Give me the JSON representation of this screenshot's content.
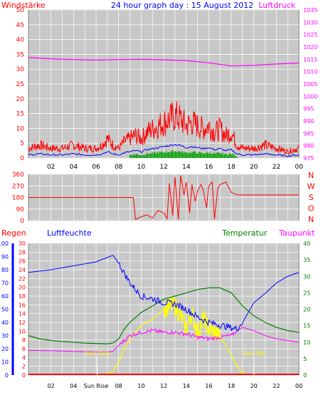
{
  "colors": {
    "background": "#ffffff",
    "plot_area": "#c8c8c8",
    "gridline": "#ffffff",
    "wind": "#ff0000",
    "wind_gust_green": "#00a000",
    "wind_avg_blue": "#0000ff",
    "pressure": "#ff00ff",
    "direction": "#ff0000",
    "rain": "#ff0000",
    "humidity": "#0000ff",
    "temperature": "#008000",
    "dewpoint": "#ff00ff",
    "solar": "#ffff00",
    "solar_light": "#ffffff",
    "sun_marker": "#ffffff"
  },
  "header": {
    "title": "24 hour graph day : 15 August 2012",
    "left_label": "Windstärke",
    "right_label": "Luftdruck"
  },
  "dir_labels": [
    "N",
    "W",
    "S",
    "O",
    "N"
  ],
  "bottom_labels": {
    "rain": "Regen",
    "humidity": "Luftfeuchte",
    "temperature": "Temperatur",
    "dewpoint": "Taupunkt",
    "sun_rise_in_plot": "Sun Rise",
    "sun_set_in_plot": "Sun Set",
    "sun_rise_axis": "Sun Rise"
  },
  "chart_data": [
    {
      "type": "line",
      "title": "24 hour graph day : 15 August 2012",
      "xlabel": "",
      "x_ticks": [
        "02",
        "04",
        "06",
        "08",
        "10",
        "12",
        "14",
        "16",
        "18",
        "20",
        "22",
        "00"
      ],
      "xlim": [
        0,
        24
      ],
      "y_left_label": "Windstärke",
      "y_left_ticks": [
        0,
        5,
        10,
        15,
        20,
        25,
        30,
        35,
        40,
        45,
        50
      ],
      "y_left_lim": [
        0,
        50
      ],
      "y_right_label": "Luftdruck",
      "y_right_ticks": [
        975,
        980,
        985,
        990,
        995,
        1000,
        1005,
        1010,
        1015,
        1020,
        1025,
        1030,
        1035
      ],
      "y_right_lim": [
        975,
        1035
      ],
      "grid": true,
      "series": [
        {
          "name": "Windstärke",
          "axis": "left",
          "x": [
            0,
            1,
            2,
            3,
            4,
            5,
            6,
            6.5,
            7,
            7.5,
            8,
            8.5,
            9,
            9.5,
            10,
            10.5,
            11,
            11.5,
            12,
            12.5,
            13,
            13.5,
            14,
            14.5,
            15,
            15.5,
            16,
            16.5,
            17,
            17.5,
            18,
            18.5,
            19,
            20,
            21,
            22,
            23,
            24
          ],
          "y": [
            3,
            4,
            3,
            3,
            4,
            3,
            3,
            4,
            6,
            4,
            3,
            5,
            6,
            7,
            6,
            8,
            9,
            10,
            11,
            12,
            13,
            12,
            10,
            11,
            10,
            9,
            10,
            8,
            9,
            7,
            8,
            4,
            3,
            3,
            4,
            3,
            2,
            3
          ]
        },
        {
          "name": "Luftdruck",
          "axis": "right",
          "x": [
            0,
            2,
            4,
            6,
            8,
            10,
            12,
            14,
            16,
            18,
            20,
            22,
            24
          ],
          "y": [
            1015.8,
            1015.2,
            1014.9,
            1014.7,
            1014.9,
            1015.0,
            1014.8,
            1014.5,
            1013.6,
            1012.3,
            1012.6,
            1013.1,
            1013.5
          ]
        }
      ]
    },
    {
      "type": "scatter",
      "title": "",
      "xlim": [
        0,
        24
      ],
      "y_ticks": [
        0,
        90,
        180,
        270,
        360
      ],
      "ylim": [
        0,
        360
      ],
      "y_right_labels": [
        "N",
        "W",
        "S",
        "O",
        "N"
      ],
      "series": [
        {
          "name": "",
          "x": [
            0,
            9.3,
            9.5,
            10,
            10.5,
            11,
            11.5,
            12,
            12.3,
            12.5,
            12.8,
            13,
            13.3,
            13.5,
            13.8,
            14,
            14.3,
            14.5,
            14.8,
            15,
            15.3,
            15.5,
            15.8,
            16,
            16.3,
            16.5,
            16.8,
            17,
            17.5,
            18,
            18.5,
            24
          ],
          "y": [
            180,
            180,
            10,
            30,
            45,
            20,
            80,
            60,
            15,
            290,
            40,
            340,
            10,
            350,
            200,
            300,
            60,
            280,
            150,
            230,
            280,
            240,
            100,
            270,
            300,
            10,
            250,
            280,
            300,
            220,
            200,
            200
          ]
        }
      ]
    },
    {
      "type": "line",
      "title": "",
      "x_ticks": [
        "02",
        "04",
        "Sun Rise",
        "08",
        "10",
        "12",
        "14",
        "16",
        "18",
        "20",
        "22",
        "00"
      ],
      "xlim": [
        0,
        24
      ],
      "y_left_outer_label": "Regen",
      "y_left_outer_ticks": [
        0,
        10,
        20,
        30,
        40,
        50,
        60,
        70,
        80,
        90,
        100
      ],
      "y_left_outer_lim": [
        0,
        100
      ],
      "y_left_inner_label": "Luftfeuchte",
      "y_left_inner_ticks": [
        0,
        2,
        4,
        6,
        8,
        10,
        12,
        14,
        16,
        18,
        20,
        22,
        24,
        26,
        28,
        30
      ],
      "y_left_inner_lim": [
        0,
        30
      ],
      "y_right_label": "Temperatur",
      "y_right_ticks": [
        0,
        5,
        10,
        15,
        20,
        25,
        30,
        35,
        40
      ],
      "y_right_lim": [
        0,
        40
      ],
      "right_extra_label": "Taupunkt",
      "annotations": [
        "Sun Rise",
        "Sun Set"
      ],
      "grid": true,
      "series": [
        {
          "name": "Luftfeuchte",
          "axis": "left_outer",
          "x": [
            0,
            2,
            4,
            6,
            7.5,
            8,
            9,
            10,
            11,
            12,
            13,
            14,
            15,
            16,
            17,
            18,
            18.5,
            19,
            20,
            21,
            22,
            23,
            24
          ],
          "y": [
            78,
            80,
            83,
            86,
            91,
            85,
            70,
            60,
            58,
            55,
            54,
            50,
            44,
            40,
            38,
            36,
            35,
            40,
            55,
            62,
            70,
            75,
            78
          ]
        },
        {
          "name": "Temperatur",
          "axis": "right",
          "x": [
            0,
            1,
            2,
            3,
            4,
            5,
            6,
            7,
            7.5,
            8,
            8.5,
            9,
            10,
            11,
            12,
            13,
            14,
            15,
            16,
            17,
            18,
            19,
            20,
            21,
            22,
            23,
            24
          ],
          "y": [
            12,
            11,
            10.5,
            10.2,
            10,
            9.7,
            9.6,
            9.5,
            9.8,
            11,
            14,
            16,
            19,
            21,
            23,
            24,
            25,
            26,
            26.5,
            26.5,
            25,
            21,
            18,
            16,
            14.5,
            13.5,
            13
          ]
        },
        {
          "name": "Taupunkt",
          "axis": "right",
          "x": [
            0,
            2,
            4,
            6,
            7,
            7.5,
            8,
            9,
            10,
            11,
            12,
            13,
            14,
            15,
            16,
            17,
            18,
            18.5,
            19,
            20,
            21,
            22,
            23,
            24
          ],
          "y": [
            7.5,
            7.4,
            7.2,
            7.0,
            7.0,
            7.2,
            9,
            12,
            13,
            13.5,
            13,
            13,
            12.5,
            11.5,
            11,
            11.5,
            12,
            13.5,
            14.5,
            13.5,
            12,
            11,
            10.5,
            10
          ]
        },
        {
          "name": "Solar",
          "axis": "right",
          "x": [
            6.5,
            7.5,
            8,
            8.5,
            9,
            10,
            11,
            12,
            12.5,
            13,
            13.5,
            14,
            14.5,
            15,
            15.5,
            16,
            17,
            18,
            18.5,
            19,
            20
          ],
          "y": [
            0,
            1,
            4,
            8,
            11,
            15,
            17,
            20,
            21,
            21,
            18,
            14,
            19,
            13,
            17,
            14,
            12,
            6,
            3,
            0.5,
            0
          ]
        },
        {
          "name": "Regen",
          "axis": "left_outer",
          "x": [
            0,
            24
          ],
          "y": [
            0,
            0
          ]
        }
      ]
    }
  ]
}
